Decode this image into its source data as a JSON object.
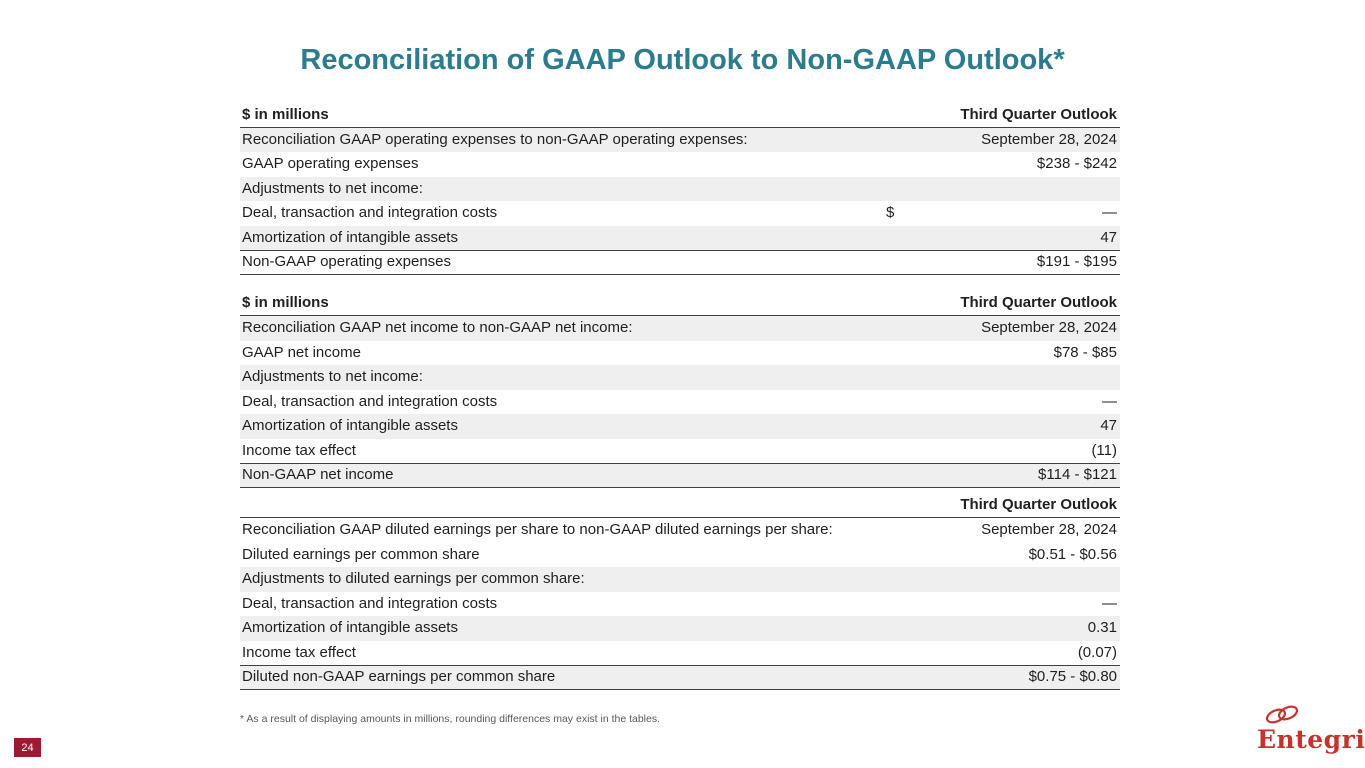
{
  "slide": {
    "title": "Reconciliation of GAAP Outlook to Non-GAAP Outlook*",
    "footnote": "* As a result of displaying amounts in millions, rounding differences may exist in the tables.",
    "page_number": "24",
    "logo_text": "Entegris",
    "colors": {
      "title_teal": "#2B7C8E",
      "row_shade": "#EFEFEF",
      "badge_red": "#9C1B33",
      "logo_red": "#C5332D"
    }
  },
  "tables": [
    {
      "header_left": "$ in millions",
      "header_right": "Third Quarter Outlook",
      "rows": [
        {
          "label": "Reconciliation GAAP operating expenses to non-GAAP operating expenses:",
          "value": "September 28, 2024",
          "shaded": true
        },
        {
          "label": "GAAP operating expenses",
          "value": "$238 - $242",
          "shaded": false
        },
        {
          "label": "Adjustments to net income:",
          "value": "",
          "shaded": true
        },
        {
          "label": "Deal, transaction and integration costs",
          "prefix": "$",
          "value": "—",
          "shaded": false
        },
        {
          "label": "Amortization of intangible assets",
          "value": "47",
          "shaded": true
        },
        {
          "label": "Non-GAAP operating expenses",
          "value": "$191 - $195",
          "shaded": false,
          "total": true
        }
      ]
    },
    {
      "header_left": "$ in millions",
      "header_right": "Third Quarter Outlook",
      "rows": [
        {
          "label": "Reconciliation GAAP net income to non-GAAP net income:",
          "value": "September 28, 2024",
          "shaded": true
        },
        {
          "label": "GAAP net income",
          "value": "$78 - $85",
          "shaded": false
        },
        {
          "label": "Adjustments to net income:",
          "value": "",
          "shaded": true
        },
        {
          "label": "Deal, transaction and integration costs",
          "value": "—",
          "shaded": false
        },
        {
          "label": "Amortization of intangible assets",
          "value": "47",
          "shaded": true
        },
        {
          "label": "Income tax effect",
          "value": "(11)",
          "shaded": false
        },
        {
          "label": "Non-GAAP net income",
          "value": "$114 - $121",
          "shaded": true,
          "total": true
        }
      ]
    },
    {
      "header_left": "",
      "header_right": "Third Quarter Outlook",
      "rows": [
        {
          "label": "Reconciliation GAAP diluted earnings per share to non-GAAP diluted earnings per share:",
          "value": "September 28, 2024",
          "shaded": false
        },
        {
          "label": "Diluted earnings per common share",
          "value": "$0.51 - $0.56",
          "shaded": false
        },
        {
          "label": "Adjustments to diluted earnings per common share:",
          "value": "",
          "shaded": true
        },
        {
          "label": "Deal, transaction and integration costs",
          "value": "—",
          "shaded": false
        },
        {
          "label": "Amortization of intangible assets",
          "value": "0.31",
          "shaded": true
        },
        {
          "label": "Income tax effect",
          "value": "(0.07)",
          "shaded": false
        },
        {
          "label": "Diluted non-GAAP earnings per common share",
          "value": "$0.75 - $0.80",
          "shaded": true,
          "total": true
        }
      ]
    }
  ]
}
